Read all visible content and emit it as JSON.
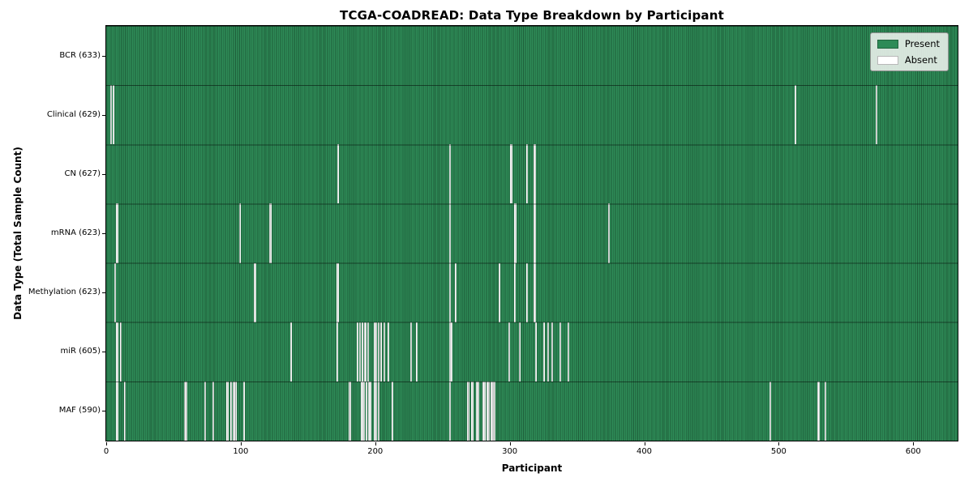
{
  "chart_data": {
    "type": "heatmap",
    "title": "TCGA-COADREAD: Data Type Breakdown by Participant",
    "xlabel": "Participant",
    "ylabel": "Data Type (Total Sample Count)",
    "n_participants": 633,
    "xlim": [
      0,
      633
    ],
    "x_ticks": [
      0,
      100,
      200,
      300,
      400,
      500,
      600
    ],
    "grid": false,
    "legend_position": "upper right",
    "legend_items": [
      {
        "name": "present",
        "label": "Present",
        "color": "#2e8b57"
      },
      {
        "name": "absent",
        "label": "Absent",
        "color": "#ffffff"
      }
    ],
    "colors": {
      "present": "#2e8b57",
      "absent": "#ffffff",
      "cell_edge": "rgba(6,26,14,0.40)"
    },
    "rows": [
      {
        "name": "bcr",
        "label": "BCR (633)",
        "total": 633,
        "absent_participants": []
      },
      {
        "name": "clinical",
        "label": "Clinical (629)",
        "total": 629,
        "absent_participants": [
          3,
          5,
          512,
          572
        ]
      },
      {
        "name": "cn",
        "label": "CN (627)",
        "total": 627,
        "absent_participants": [
          172,
          255,
          300,
          301,
          312,
          318
        ]
      },
      {
        "name": "mrna",
        "label": "mRNA (623)",
        "total": 623,
        "absent_participants": [
          7,
          8,
          99,
          121,
          122,
          255,
          303,
          304,
          318,
          373
        ]
      },
      {
        "name": "methylation",
        "label": "Methylation (623)",
        "total": 623,
        "absent_participants": [
          6,
          110,
          171,
          172,
          255,
          259,
          292,
          303,
          312,
          318
        ]
      },
      {
        "name": "mir",
        "label": "miR (605)",
        "total": 605,
        "absent_participants": [
          7,
          8,
          10,
          137,
          171,
          186,
          188,
          190,
          192,
          194,
          199,
          200,
          202,
          204,
          206,
          209,
          226,
          230,
          255,
          256,
          299,
          307,
          319,
          325,
          328,
          331,
          337,
          343
        ]
      },
      {
        "name": "maf",
        "label": "MAF (590)",
        "total": 590,
        "absent_participants": [
          7,
          8,
          13,
          58,
          59,
          73,
          79,
          89,
          90,
          92,
          94,
          95,
          96,
          102,
          180,
          181,
          189,
          190,
          191,
          193,
          195,
          196,
          199,
          200,
          202,
          212,
          255,
          268,
          269,
          271,
          272,
          275,
          276,
          280,
          281,
          283,
          284,
          286,
          287,
          288,
          493,
          529,
          534
        ]
      }
    ]
  }
}
